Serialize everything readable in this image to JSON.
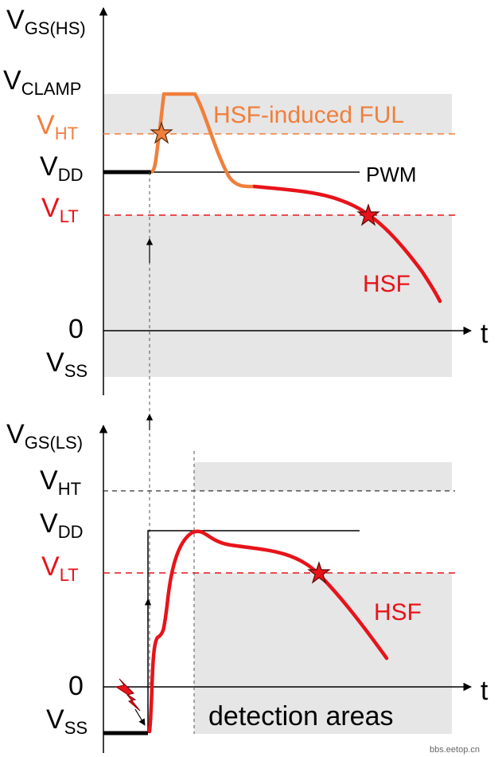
{
  "colors": {
    "red": "#e8131a",
    "orange": "#f07f3c",
    "black": "#000000",
    "gray_area": "#e6e6e6",
    "spark": "#e8131a"
  },
  "top": {
    "axis_main": "V",
    "axis_sub": "GS(HS)",
    "v_clamp_main": "V",
    "v_clamp_sub": "CLAMP",
    "v_ht_main": "V",
    "v_ht_sub": "HT",
    "v_dd_main": "V",
    "v_dd_sub": "DD",
    "v_lt_main": "V",
    "v_lt_sub": "LT",
    "zero": "0",
    "v_ss_main": "V",
    "v_ss_sub": "SS",
    "t": "t",
    "ful_label": "HSF-induced FUL",
    "pwm_label": "PWM",
    "hsf_label": "HSF"
  },
  "bottom": {
    "axis_main": "V",
    "axis_sub": "GS(LS)",
    "v_ht_main": "V",
    "v_ht_sub": "HT",
    "v_dd_main": "V",
    "v_dd_sub": "DD",
    "v_lt_main": "V",
    "v_lt_sub": "LT",
    "zero": "0",
    "v_ss_main": "V",
    "v_ss_sub": "SS",
    "t": "t",
    "hsf_label": "HSF",
    "detection_label": "detection areas"
  },
  "watermark": "bbs.eetop.cn"
}
